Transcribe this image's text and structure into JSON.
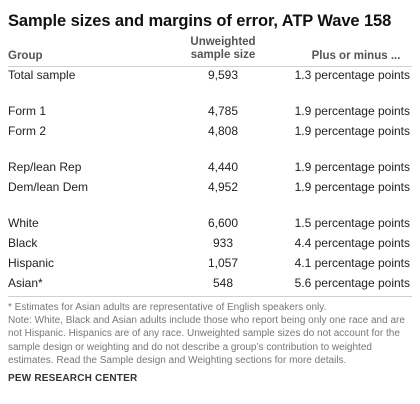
{
  "title": "Sample sizes and margins of error, ATP Wave 158",
  "headers": {
    "group": "Group",
    "size_line1": "Unweighted",
    "size_line2": "sample size",
    "moe": "Plus or minus ..."
  },
  "rows": [
    {
      "group": "Total sample",
      "n": "9,593",
      "moe": "1.3 percentage points"
    },
    {
      "group": "Form 1",
      "n": "4,785",
      "moe": "1.9 percentage points"
    },
    {
      "group": "Form 2",
      "n": "4,808",
      "moe": "1.9 percentage points"
    },
    {
      "group": "Rep/lean Rep",
      "n": "4,440",
      "moe": "1.9 percentage points"
    },
    {
      "group": "Dem/lean Dem",
      "n": "4,952",
      "moe": "1.9 percentage points"
    },
    {
      "group": "White",
      "n": "6,600",
      "moe": "1.5 percentage points"
    },
    {
      "group": "Black",
      "n": "933",
      "moe": "4.4 percentage points"
    },
    {
      "group": "Hispanic",
      "n": "1,057",
      "moe": "4.1 percentage points"
    },
    {
      "group": "Asian*",
      "n": "548",
      "moe": "5.6 percentage points"
    }
  ],
  "notes": {
    "asterisk": "* Estimates for Asian adults are representative of English speakers only.",
    "note": "Note: White, Black and Asian adults include those who report being only one race and are not Hispanic. Hispanics are of any race. Unweighted sample sizes do not account for the sample design or weighting and do not describe a group’s contribution to weighted estimates. Read the Sample design and Weighting sections for more details."
  },
  "source": "PEW RESEARCH CENTER"
}
